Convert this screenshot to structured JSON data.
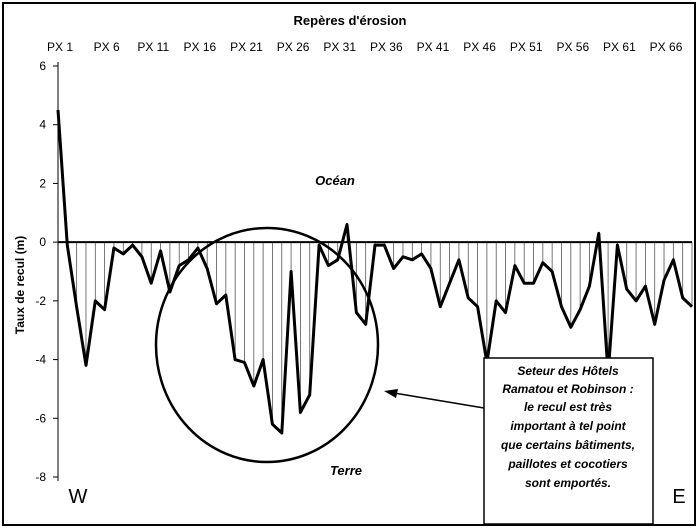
{
  "chart_data": {
    "type": "line",
    "title": "Repères d'érosion",
    "ylabel": "Taux de recul (m)",
    "xlabel": "",
    "ylim": [
      -8,
      6
    ],
    "yticks": [
      -8,
      -6,
      -4,
      -2,
      0,
      2,
      4,
      6
    ],
    "x_tick_labels": [
      "PX 1",
      "PX 6",
      "PX 11",
      "PX 16",
      "PX 21",
      "PX 26",
      "PX 31",
      "PX 36",
      "PX 41",
      "PX 46",
      "PX 51",
      "PX 56",
      "PX 61",
      "PX 66"
    ],
    "x_tick_step": 5,
    "values": [
      4.5,
      -0.1,
      -2.2,
      -4.2,
      -2.0,
      -2.3,
      -0.2,
      -0.4,
      -0.1,
      -0.5,
      -1.4,
      -0.3,
      -1.7,
      -0.8,
      -0.6,
      -0.2,
      -0.9,
      -2.1,
      -1.8,
      -4.0,
      -4.1,
      -4.9,
      -4.0,
      -6.2,
      -6.5,
      -1.0,
      -5.8,
      -5.2,
      -0.1,
      -0.8,
      -0.6,
      0.6,
      -2.4,
      -2.8,
      -0.1,
      -0.1,
      -0.9,
      -0.5,
      -0.6,
      -0.4,
      -0.9,
      -2.2,
      -1.4,
      -0.6,
      -1.9,
      -2.2,
      -4.1,
      -2.0,
      -2.4,
      -0.8,
      -1.4,
      -1.4,
      -0.7,
      -1.0,
      -2.2,
      -2.9,
      -2.3,
      -1.5,
      0.3,
      -4.5,
      -0.1,
      -1.6,
      -2.0,
      -1.5,
      -2.8,
      -1.3,
      -0.6,
      -1.9,
      -2.2
    ],
    "grid": false,
    "fill": "vertical hatching between curve and zero line"
  },
  "annotations": {
    "ocean": "Océan",
    "land": "Terre",
    "west": "W",
    "east": "E",
    "callout_lines": [
      "Seteur des Hôtels",
      "Ramatou et Robinson :",
      "le recul est très",
      "important à tel point",
      "que certains bâtiments,",
      "paillotes et cocotiers",
      "sont emportés."
    ]
  }
}
